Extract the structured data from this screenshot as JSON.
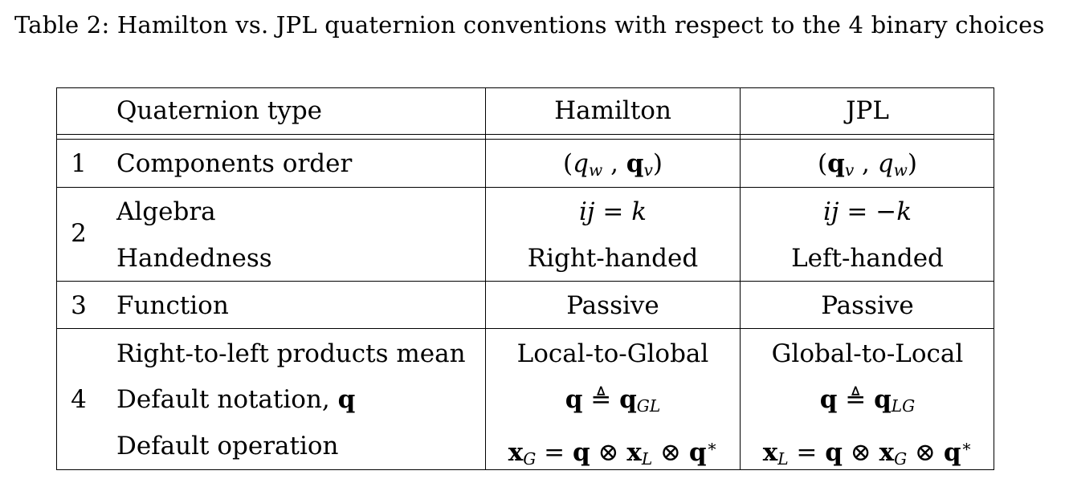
{
  "caption": "Table 2: Hamilton vs. JPL quaternion conventions with respect to the 4 binary choices",
  "header": {
    "type_label": "Quaternion type",
    "hamilton": "Hamilton",
    "jpl": "JPL"
  },
  "rows": [
    {
      "num": "1",
      "items": [
        {
          "label": "Components order",
          "hamilton": "(q_w , q_v)",
          "jpl": "(q_v , q_w)"
        }
      ]
    },
    {
      "num": "2",
      "items": [
        {
          "label": "Algebra",
          "hamilton": "ij = k",
          "jpl": "ij = −k"
        },
        {
          "label": "Handedness",
          "hamilton": "Right-handed",
          "jpl": "Left-handed"
        }
      ]
    },
    {
      "num": "3",
      "items": [
        {
          "label": "Function",
          "hamilton": "Passive",
          "jpl": "Passive"
        }
      ]
    },
    {
      "num": "4",
      "items": [
        {
          "label": "Right-to-left products mean",
          "hamilton": "Local-to-Global",
          "jpl": "Global-to-Local"
        },
        {
          "label": "Default notation, q",
          "hamilton": "q ≜ q_GL",
          "jpl": "q ≜ q_LG"
        },
        {
          "label": "Default operation",
          "hamilton": "x_G = q ⊗ x_L ⊗ q*",
          "jpl": "x_L = q ⊗ x_G ⊗ q*"
        }
      ]
    }
  ]
}
